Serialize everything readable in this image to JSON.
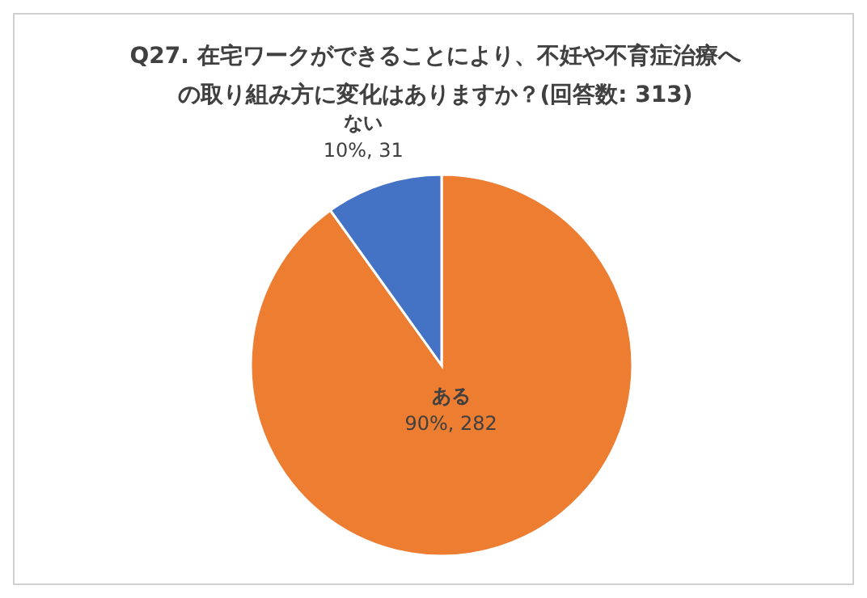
{
  "chart_data": {
    "type": "pie",
    "title": "Q27. 在宅ワークができることにより、不妊や不育症治療への取り組み方に変化はありますか？(回答数: 313)",
    "categories": [
      "ある",
      "ない"
    ],
    "values": [
      282,
      31
    ],
    "colors": [
      "#ed7d31",
      "#4472c4"
    ],
    "value_labels": [
      "90%, 282",
      "10%, 31"
    ]
  }
}
